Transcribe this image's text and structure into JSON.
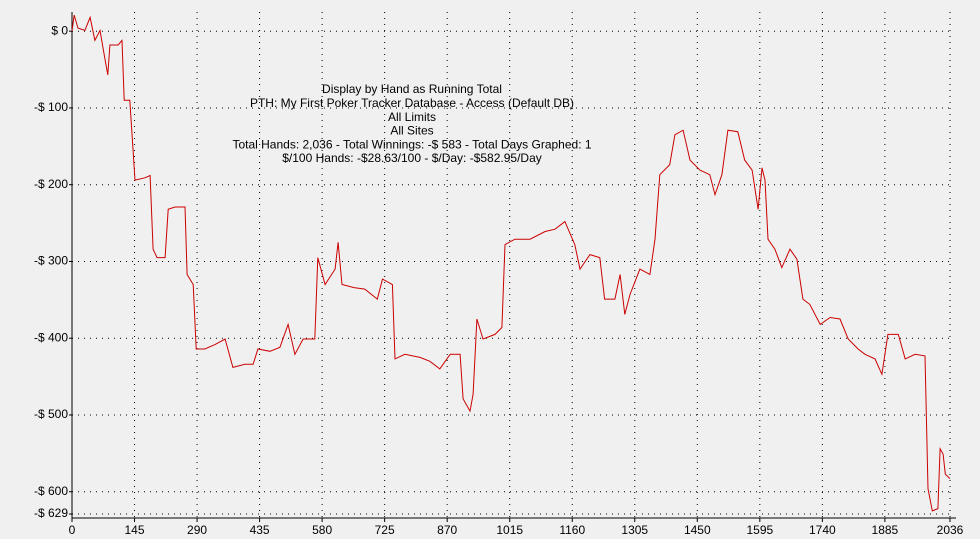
{
  "chart_data": {
    "type": "line",
    "title_lines": [
      "Display by Hand as Running Total",
      "PTH: My First Poker Tracker Database - Access (Default DB)",
      "All Limits",
      "All Sites",
      "Total Hands: 2,036 - Total Winnings: -$ 583 - Total Days Graphed: 1",
      "$/100 Hands: -$28.63/100 - $/Day: -$582.95/Day"
    ],
    "x": [
      0,
      5,
      14,
      30,
      42,
      53,
      65,
      77,
      83,
      88,
      107,
      116,
      121,
      134,
      146,
      169,
      181,
      188,
      197,
      216,
      223,
      239,
      262,
      267,
      281,
      288,
      308,
      332,
      355,
      373,
      401,
      420,
      431,
      459,
      482,
      501,
      517,
      536,
      563,
      570,
      587,
      610,
      617,
      626,
      654,
      679,
      708,
      720,
      743,
      749,
      772,
      807,
      830,
      853,
      877,
      900,
      907,
      923,
      930,
      939,
      953,
      981,
      997,
      1004,
      1027,
      1062,
      1097,
      1120,
      1143,
      1166,
      1178,
      1201,
      1224,
      1235,
      1259,
      1271,
      1282,
      1294,
      1317,
      1340,
      1352,
      1363,
      1386,
      1398,
      1417,
      1433,
      1456,
      1479,
      1491,
      1507,
      1521,
      1544,
      1560,
      1577,
      1591,
      1600,
      1607,
      1614,
      1630,
      1646,
      1665,
      1681,
      1695,
      1711,
      1735,
      1758,
      1781,
      1800,
      1823,
      1839,
      1862,
      1878,
      1892,
      1916,
      1932,
      1955,
      1978,
      1985,
      1995,
      2008,
      2013,
      2020,
      2025,
      2036
    ],
    "series": [
      {
        "name": "Running Total",
        "color": "#cc0000",
        "values": [
          0,
          21,
          4,
          1,
          18,
          -12,
          1,
          -38,
          -57,
          -18,
          -18,
          -12,
          -90,
          -90,
          -194,
          -191,
          -188,
          -284,
          -295,
          -295,
          -232,
          -229,
          -229,
          -317,
          -330,
          -414,
          -414,
          -408,
          -401,
          -438,
          -434,
          -434,
          -414,
          -417,
          -412,
          -382,
          -421,
          -401,
          -401,
          -295,
          -330,
          -310,
          -275,
          -330,
          -334,
          -336,
          -349,
          -323,
          -330,
          -427,
          -421,
          -425,
          -430,
          -440,
          -421,
          -421,
          -479,
          -495,
          -473,
          -375,
          -401,
          -395,
          -386,
          -278,
          -271,
          -271,
          -261,
          -258,
          -248,
          -278,
          -310,
          -291,
          -295,
          -349,
          -349,
          -317,
          -369,
          -343,
          -310,
          -317,
          -271,
          -187,
          -174,
          -135,
          -129,
          -168,
          -181,
          -187,
          -213,
          -187,
          -129,
          -131,
          -168,
          -181,
          -232,
          -178,
          -194,
          -271,
          -284,
          -308,
          -284,
          -297,
          -349,
          -356,
          -382,
          -373,
          -375,
          -401,
          -414,
          -421,
          -427,
          -447,
          -395,
          -395,
          -427,
          -421,
          -423,
          -596,
          -625,
          -622,
          -544,
          -551,
          -577,
          -583
        ]
      }
    ],
    "xlim": [
      0,
      2036
    ],
    "xticks": [
      0,
      145,
      290,
      435,
      580,
      725,
      870,
      1015,
      1160,
      1305,
      1450,
      1595,
      1740,
      1885,
      2036
    ],
    "ylim": [
      -629,
      25
    ],
    "yticks": [
      {
        "value": 0,
        "label": "$ 0"
      },
      {
        "value": -100,
        "label": "-$ 100"
      },
      {
        "value": -200,
        "label": "-$ 200"
      },
      {
        "value": -300,
        "label": "-$ 300"
      },
      {
        "value": -400,
        "label": "-$ 400"
      },
      {
        "value": -500,
        "label": "-$ 500"
      },
      {
        "value": -600,
        "label": "-$ 600"
      },
      {
        "value": -629,
        "label": "-$ 629"
      }
    ],
    "grid": true
  }
}
